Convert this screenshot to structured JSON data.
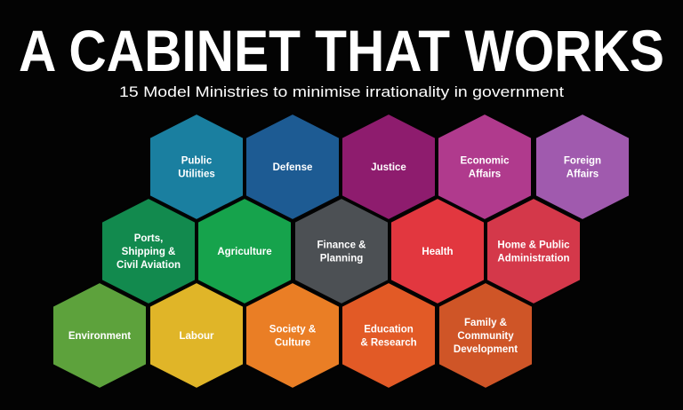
{
  "header": {
    "title": "A CABINET THAT WORKS",
    "subtitle": "15 Model Ministries to minimise irrationality in government"
  },
  "ministries": [
    {
      "lines": [
        "Public",
        "Utilities"
      ],
      "color": "#1a7fa0"
    },
    {
      "lines": [
        "Defense"
      ],
      "color": "#1d5b93"
    },
    {
      "lines": [
        "Justice"
      ],
      "color": "#8e1c6e"
    },
    {
      "lines": [
        "Economic",
        "Affairs"
      ],
      "color": "#b03a8d"
    },
    {
      "lines": [
        "Foreign",
        "Affairs"
      ],
      "color": "#a05aae"
    },
    {
      "lines": [
        "Ports,",
        "Shipping &",
        "Civil Aviation"
      ],
      "color": "#128a4e"
    },
    {
      "lines": [
        "Agriculture"
      ],
      "color": "#16a34c"
    },
    {
      "lines": [
        "Finance &",
        "Planning"
      ],
      "color": "#4c5054"
    },
    {
      "lines": [
        "Health"
      ],
      "color": "#e2373f"
    },
    {
      "lines": [
        "Home & Public",
        "Administration"
      ],
      "color": "#d4384a"
    },
    {
      "lines": [
        "Environment"
      ],
      "color": "#5da23c"
    },
    {
      "lines": [
        "Labour"
      ],
      "color": "#e0b528"
    },
    {
      "lines": [
        "Society &",
        "Culture"
      ],
      "color": "#ea7e25"
    },
    {
      "lines": [
        "Education",
        "& Research"
      ],
      "color": "#e25a26"
    },
    {
      "lines": [
        "Family &",
        "Community",
        "Development"
      ],
      "color": "#cf5527"
    }
  ]
}
